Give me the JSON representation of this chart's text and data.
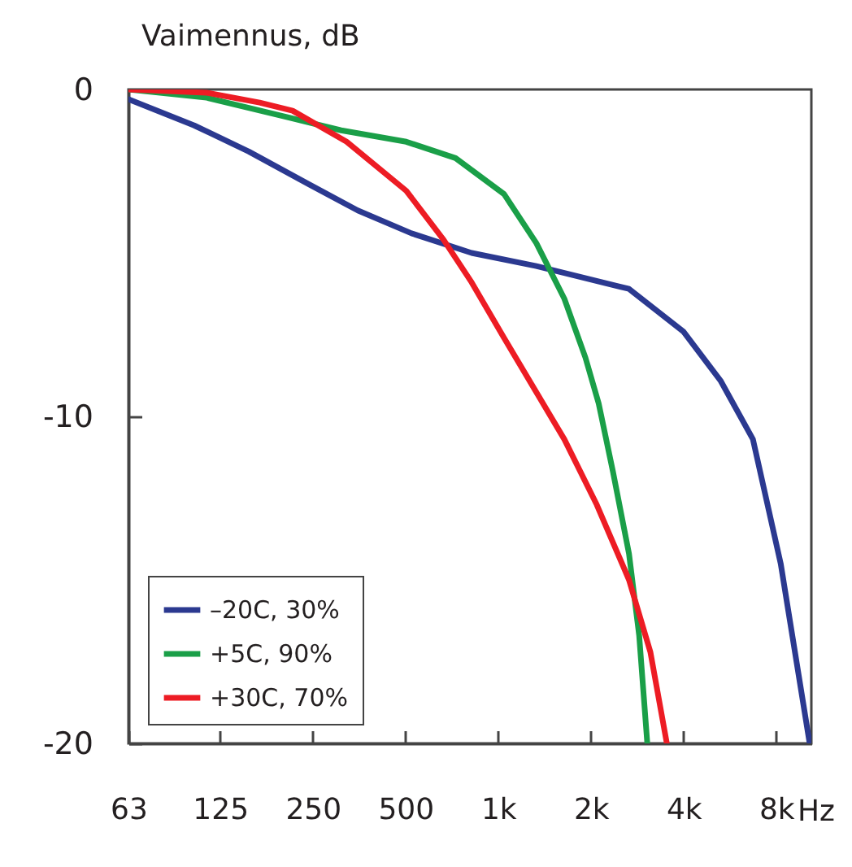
{
  "chart_data": {
    "type": "line",
    "title": "Vaimennus, dB",
    "log": "x",
    "xlim": [
      63,
      10400
    ],
    "ylim": [
      -20,
      0
    ],
    "xticks": [
      63,
      125,
      250,
      500,
      {
        "value": 1000,
        "label": "1k"
      },
      {
        "value": 2000,
        "label": "2k"
      },
      {
        "value": 4000,
        "label": "4k"
      },
      {
        "value": 8000,
        "label": "8k"
      }
    ],
    "xlabel": "Hz",
    "yticks": [
      0,
      -10,
      -20
    ],
    "grid": false,
    "legend": "bottom left",
    "marker": "none",
    "line_style": "solid",
    "series": [
      {
        "name": "–20C, 30%",
        "color": "#2b3990",
        "x": [
          63,
          103,
          155,
          243,
          350,
          523,
          820,
          1330,
          2660,
          3990,
          5270,
          6720,
          8270,
          10270
        ],
        "values": [
          -0.3,
          -1.1,
          -1.9,
          -2.9,
          -3.7,
          -4.4,
          -5.0,
          -5.4,
          -6.1,
          -7.4,
          -8.9,
          -10.7,
          -14.5,
          -20
        ]
      },
      {
        "name": "+5C, 90%",
        "color": "#1a9f48",
        "x": [
          63,
          113,
          207,
          309,
          503,
          727,
          1045,
          1330,
          1640,
          1920,
          2120,
          2360,
          2660,
          2870,
          3050
        ],
        "values": [
          0,
          -0.25,
          -0.85,
          -1.25,
          -1.6,
          -2.1,
          -3.2,
          -4.7,
          -6.4,
          -8.2,
          -9.6,
          -11.7,
          -14.2,
          -16.7,
          -20
        ]
      },
      {
        "name": "+30C, 70%",
        "color": "#ed1c24",
        "x": [
          63,
          113,
          168,
          215,
          322,
          503,
          665,
          820,
          1045,
          1640,
          2090,
          2660,
          3120,
          3530
        ],
        "values": [
          0,
          -0.1,
          -0.4,
          -0.65,
          -1.6,
          -3.1,
          -4.6,
          -5.9,
          -7.6,
          -10.7,
          -12.7,
          -15.0,
          -17.2,
          -20
        ]
      }
    ]
  }
}
